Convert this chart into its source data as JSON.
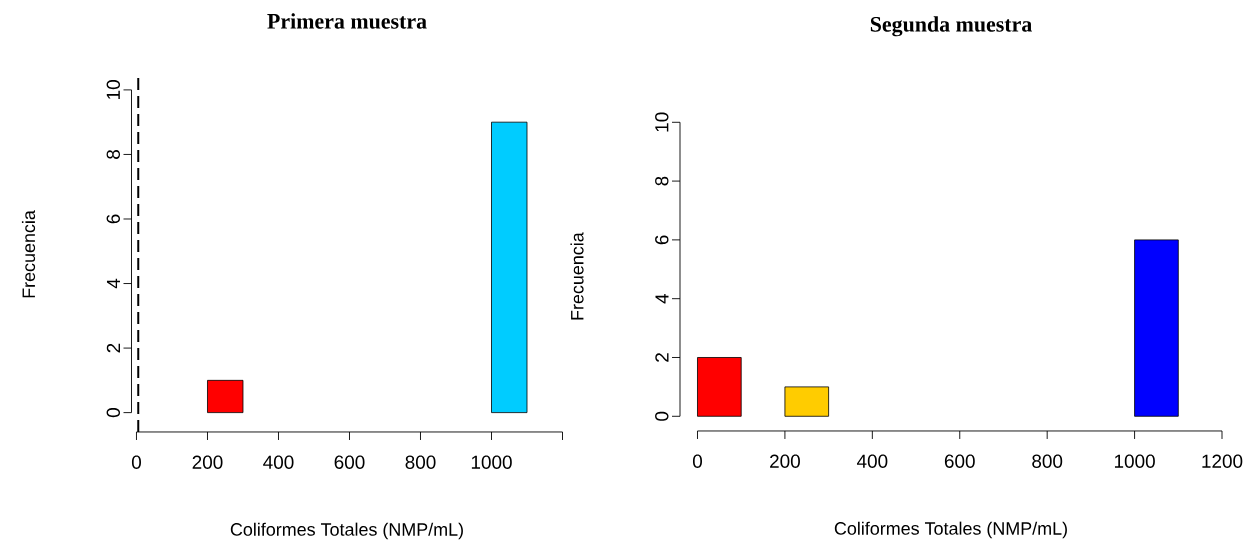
{
  "chart_data": [
    {
      "type": "histogram",
      "title": "Primera muestra",
      "xlabel": "Coliformes Totales (NMP/mL)",
      "ylabel": "Frecuencia",
      "bins": [
        200,
        300,
        400,
        500,
        600,
        700,
        800,
        900,
        1000,
        1100
      ],
      "values": [
        1,
        0,
        0,
        0,
        0,
        0,
        0,
        0,
        9
      ],
      "colors": [
        "#ff0000",
        "#ffffff",
        "#ffffff",
        "#ffffff",
        "#ffffff",
        "#ffffff",
        "#ffffff",
        "#ffffff",
        "#00ccff"
      ],
      "xlim": [
        -14,
        1200
      ],
      "ylim": [
        -0.6,
        10.4
      ],
      "xticks": [
        0,
        200,
        400,
        600,
        800,
        1000,
        {
          "value": 1200,
          "label": null
        }
      ],
      "yticks": [
        0,
        2,
        4,
        6,
        8,
        10
      ],
      "ref_lines": [
        {
          "axis": "x",
          "value": 5,
          "line_style": "dashed"
        }
      ]
    },
    {
      "type": "histogram",
      "title": "Segunda muestra",
      "xlabel": "Coliformes Totales (NMP/mL)",
      "ylabel": "Frecuencia",
      "bins": [
        0,
        100,
        200,
        300,
        400,
        500,
        600,
        700,
        800,
        900,
        1000,
        1100
      ],
      "values": [
        2,
        0,
        1,
        0,
        0,
        0,
        0,
        0,
        0,
        0,
        6
      ],
      "colors": [
        "#ff0000",
        "#ffffff",
        "#ffcc00",
        "#ffffff",
        "#ffffff",
        "#ffffff",
        "#ffffff",
        "#ffffff",
        "#ffffff",
        "#ffffff",
        "#0000ff"
      ],
      "xlim": [
        -40,
        1200
      ],
      "ylim": [
        -0.5,
        10
      ],
      "xticks": [
        0,
        200,
        400,
        600,
        800,
        1000,
        1200
      ],
      "yticks": [
        0,
        2,
        4,
        6,
        8,
        10
      ]
    }
  ]
}
